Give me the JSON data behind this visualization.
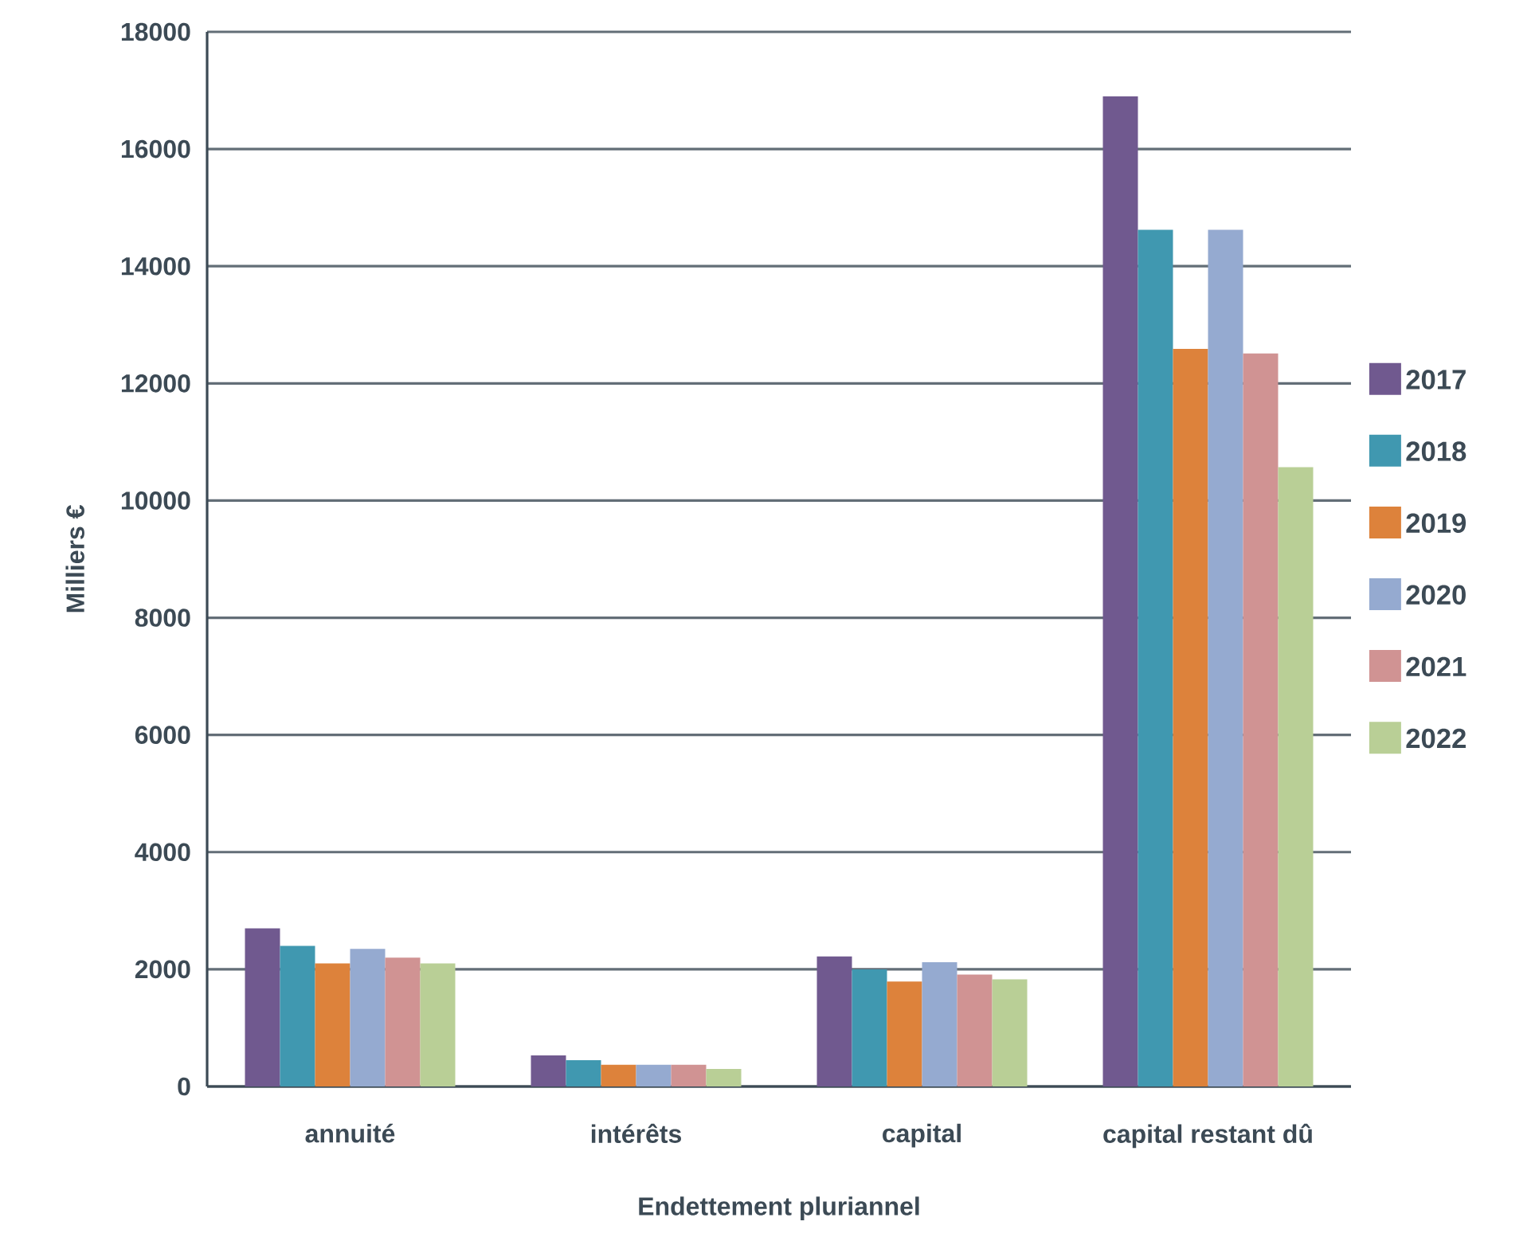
{
  "chart_data": {
    "type": "bar",
    "xlabel": "Endettement pluriannel",
    "ylabel": "Milliers €",
    "categories": [
      "annuité",
      "intérêts",
      "capital",
      "capital restant dû"
    ],
    "series": [
      {
        "name": "2017",
        "color": "#70598f",
        "values": [
          2700,
          530,
          2220,
          16900
        ]
      },
      {
        "name": "2018",
        "color": "#4098b0",
        "values": [
          2400,
          450,
          2000,
          14620
        ]
      },
      {
        "name": "2019",
        "color": "#dd823b",
        "values": [
          2100,
          370,
          1790,
          12590
        ]
      },
      {
        "name": "2020",
        "color": "#95aad0",
        "values": [
          2350,
          370,
          2120,
          14620
        ]
      },
      {
        "name": "2021",
        "color": "#d09393",
        "values": [
          2200,
          370,
          1910,
          12510
        ]
      },
      {
        "name": "2022",
        "color": "#b9cf96",
        "values": [
          2100,
          300,
          1830,
          10570
        ]
      }
    ],
    "ylim": [
      0,
      18000
    ],
    "yticks": [
      0,
      2000,
      4000,
      6000,
      8000,
      10000,
      12000,
      14000,
      16000,
      18000
    ],
    "grid": "y",
    "legend": "right"
  }
}
